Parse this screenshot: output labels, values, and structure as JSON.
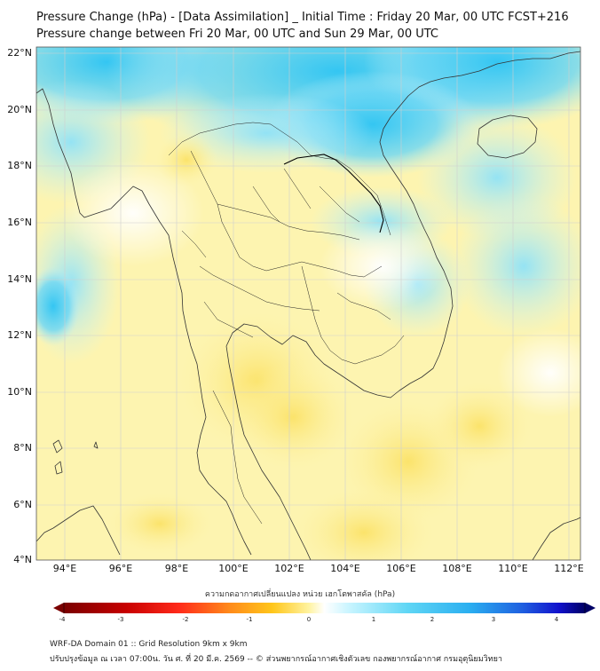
{
  "title": {
    "line1": "Pressure Change (hPa) - [Data Assimilation] _ Initial Time : Friday 20 Mar, 00 UTC FCST+216",
    "line2": "Pressure change between Fri 20 Mar, 00 UTC and Sun 29 Mar, 00 UTC"
  },
  "map": {
    "lat_labels": [
      "22°N",
      "20°N",
      "18°N",
      "16°N",
      "14°N",
      "12°N",
      "10°N",
      "8°N",
      "6°N",
      "4°N"
    ],
    "lon_labels": [
      "94°E",
      "96°E",
      "98°E",
      "100°E",
      "102°E",
      "104°E",
      "106°E",
      "108°E",
      "110°E",
      "112°E"
    ],
    "lat_range": [
      4,
      22
    ],
    "lon_range": [
      93,
      112.5
    ]
  },
  "colorbar": {
    "label": "ความกดอากาศเปลี่ยนแปลง หน่วย เฮกโตพาสคัล (hPa)",
    "ticks": [
      "-4",
      "-3",
      "-2",
      "-1",
      "0",
      "1",
      "2",
      "3",
      "4"
    ],
    "range": [
      -4.3,
      4.3
    ],
    "colors": {
      "neg_strong": "#7a0000",
      "neg_mid": "#e31a1c",
      "neg_light": "#fd8d3c",
      "neg_faint": "#fee391",
      "zero": "#ffffff",
      "pos_faint": "#c6f4ff",
      "pos_mid": "#3bc8f0",
      "pos_strong": "#1111cc",
      "pos_max": "#000066"
    }
  },
  "footer": {
    "line1": "WRF-DA Domain 01 :: Grid Resolution 9km x 9km",
    "line2": "ปรับปรุงข้อมูล ณ เวลา 07:00น. วัน ศ. ที่ 20 มี.ค. 2569 -- © ส่วนพยากรณ์อากาศเชิงตัวเลข กองพยากรณ์อากาศ กรมอุตุนิยมวิทยา"
  }
}
